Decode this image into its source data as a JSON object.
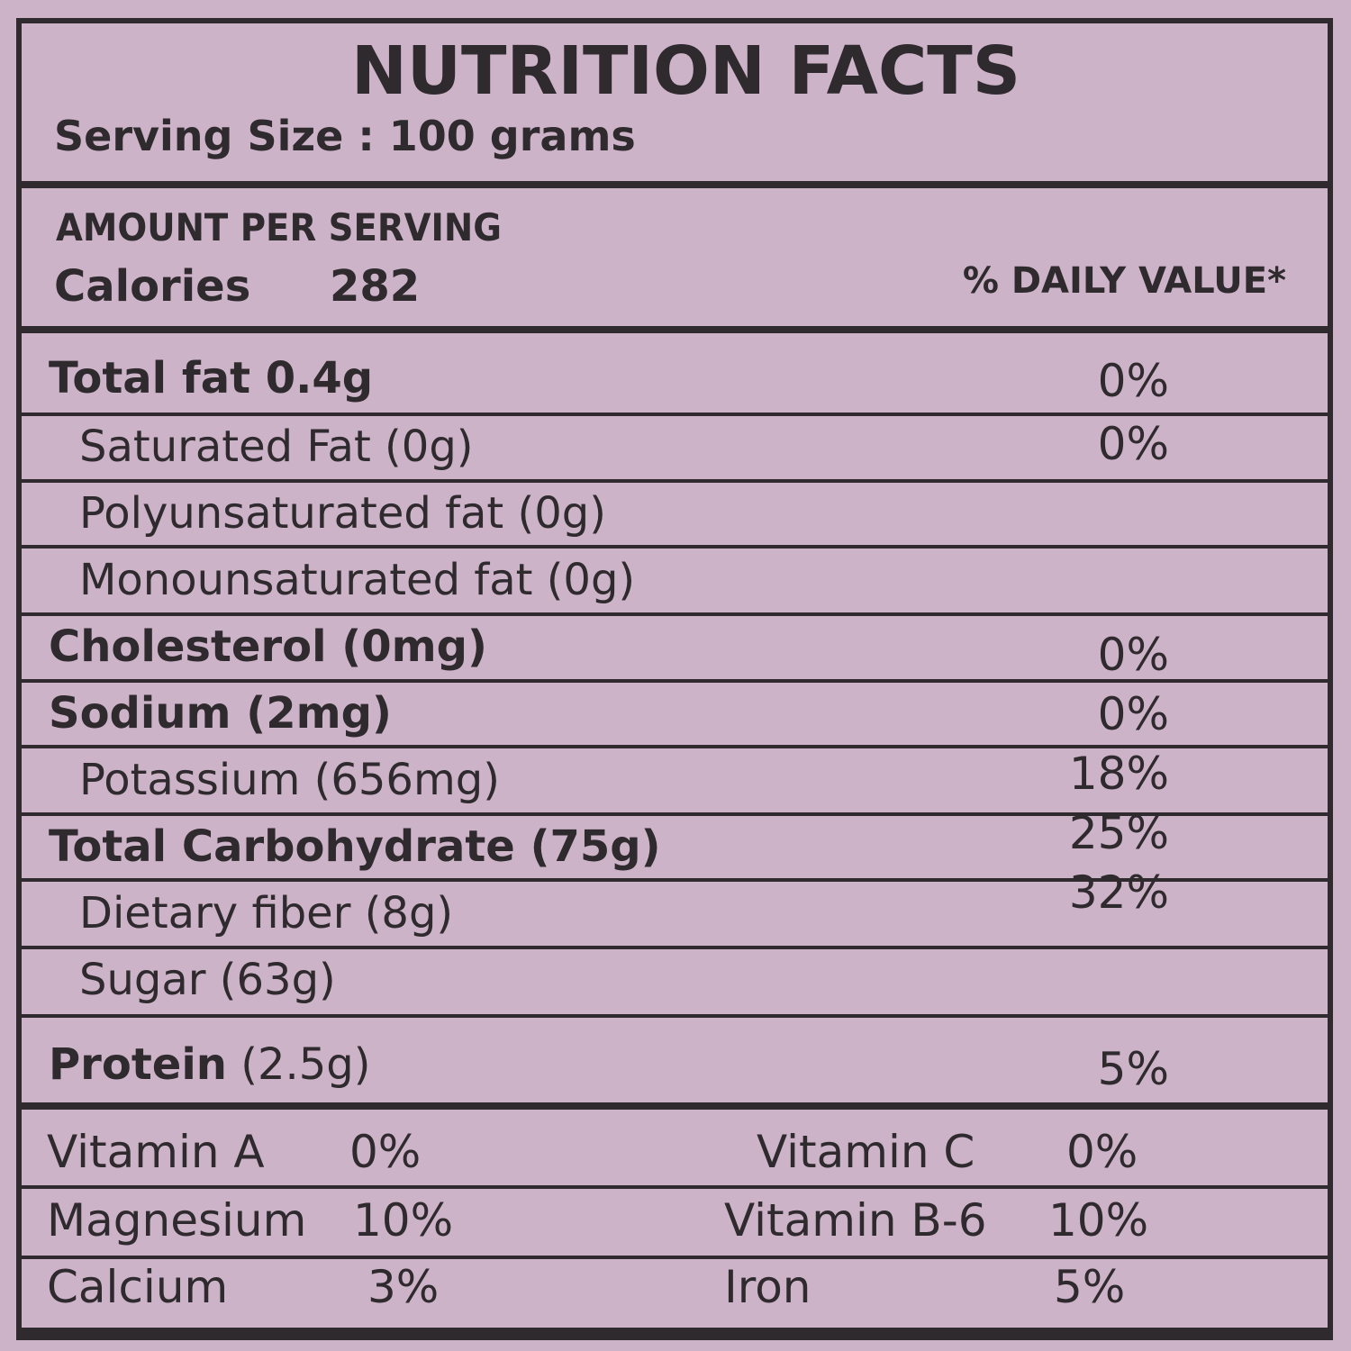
{
  "title": "NUTRITION FACTS",
  "serving_size": "Serving Size : 100 grams",
  "amount_per_serving": "AMOUNT PER SERVING",
  "calories_label": "Calories",
  "calories_value": "282",
  "daily_value_header": "% DAILY VALUE*",
  "nutrients": [
    {
      "label": "Total fat 0.4g",
      "dv": "0%"
    },
    {
      "label": "Saturated Fat (0g)",
      "dv": "0%"
    },
    {
      "label": "Polyunsaturated fat (0g)",
      "dv": ""
    },
    {
      "label": "Monounsaturated fat (0g)",
      "dv": ""
    },
    {
      "label": "Cholesterol (0mg)",
      "dv": "0%"
    },
    {
      "label": "Sodium (2mg)",
      "dv": "0%"
    },
    {
      "label": "Potassium (656mg)",
      "dv": "18%"
    },
    {
      "label": "Total Carbohydrate (75g)",
      "dv": "25%"
    },
    {
      "label": "Dietary fiber (8g)",
      "dv": "32%"
    },
    {
      "label": "Sugar (63g)",
      "dv": ""
    },
    {
      "label": "Protein",
      "amount": "(2.5g)",
      "dv": "5%"
    }
  ],
  "vitamins": [
    {
      "l1": "Vitamin A",
      "v1": "0%",
      "l2": "Vitamin C",
      "v2": "0%"
    },
    {
      "l1": "Magnesium",
      "v1": "10%",
      "l2": "Vitamin B-6",
      "v2": "10%"
    },
    {
      "l1": "Calcium",
      "v1": "3%",
      "l2": "Iron",
      "v2": "5%"
    }
  ],
  "colors": {
    "background": "#cdb3c8",
    "ink": "#2e2a2e"
  }
}
